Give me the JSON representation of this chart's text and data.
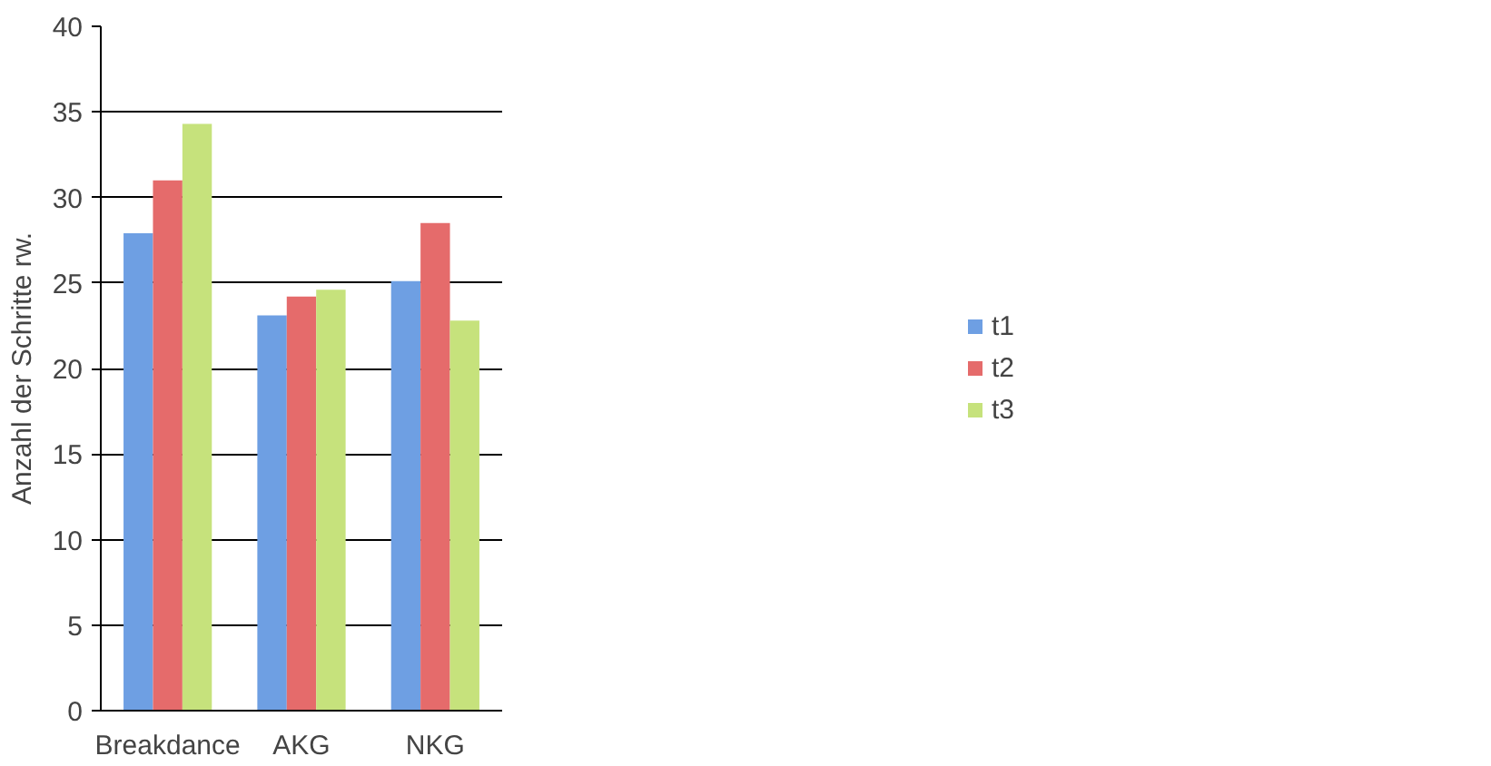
{
  "chart_data": {
    "type": "bar",
    "ylabel": "Anzahl der Schritte rw.",
    "categories": [
      "Breakdance",
      "AKG",
      "NKG"
    ],
    "series": [
      {
        "name": "t1",
        "color": "#6e9fe3",
        "values": [
          27.9,
          23.1,
          25.1
        ]
      },
      {
        "name": "t2",
        "color": "#e56b6b",
        "values": [
          31.0,
          24.2,
          28.5
        ]
      },
      {
        "name": "t3",
        "color": "#c6e27c",
        "values": [
          34.3,
          24.6,
          22.8
        ]
      }
    ],
    "ylim": [
      0,
      40
    ],
    "yticks": [
      0,
      5,
      10,
      15,
      20,
      25,
      30,
      35,
      40
    ],
    "grid": "y",
    "legend": "right"
  }
}
